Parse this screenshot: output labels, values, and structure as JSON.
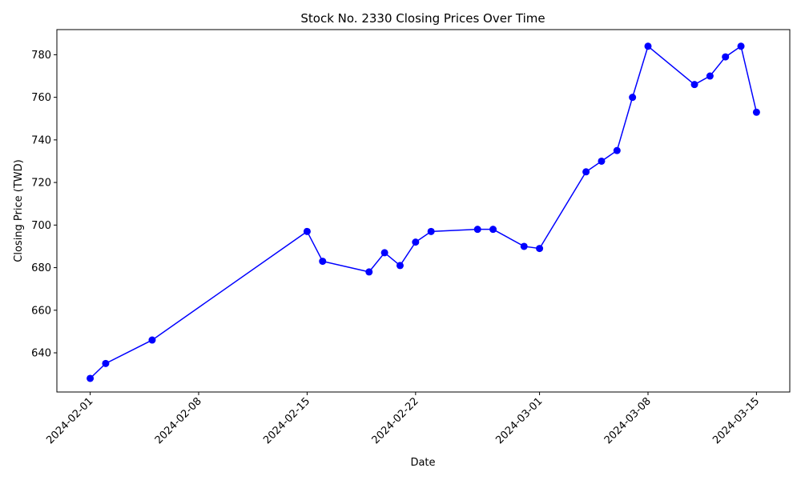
{
  "chart_data": {
    "type": "line",
    "title": "Stock No. 2330 Closing Prices Over Time",
    "xlabel": "Date",
    "ylabel": "Closing Price (TWD)",
    "x_ticks": [
      "2024-02-01",
      "2024-02-08",
      "2024-02-15",
      "2024-02-22",
      "2024-03-01",
      "2024-03-08",
      "2024-03-15"
    ],
    "y_ticks": [
      640,
      660,
      680,
      700,
      720,
      740,
      760,
      780
    ],
    "ylim": [
      621.6,
      791.8
    ],
    "xlim": [
      "2024-01-29 20:24",
      "2024-03-17 03:36"
    ],
    "grid": false,
    "legend": "none",
    "line_color": "#0000ff",
    "marker_color": "#0000ff",
    "series": [
      {
        "x": [
          "2024-02-01",
          "2024-02-02",
          "2024-02-05",
          "2024-02-15",
          "2024-02-16",
          "2024-02-19",
          "2024-02-20",
          "2024-02-21",
          "2024-02-22",
          "2024-02-23",
          "2024-02-26",
          "2024-02-27",
          "2024-02-29",
          "2024-03-01",
          "2024-03-04",
          "2024-03-05",
          "2024-03-06",
          "2024-03-07",
          "2024-03-08",
          "2024-03-11",
          "2024-03-12",
          "2024-03-13",
          "2024-03-14",
          "2024-03-15"
        ],
        "values": [
          628,
          635,
          646,
          697,
          683,
          678,
          687,
          681,
          692,
          697,
          698,
          698,
          690,
          689,
          725,
          730,
          735,
          760,
          784,
          766,
          770,
          779,
          784,
          753
        ]
      }
    ]
  }
}
